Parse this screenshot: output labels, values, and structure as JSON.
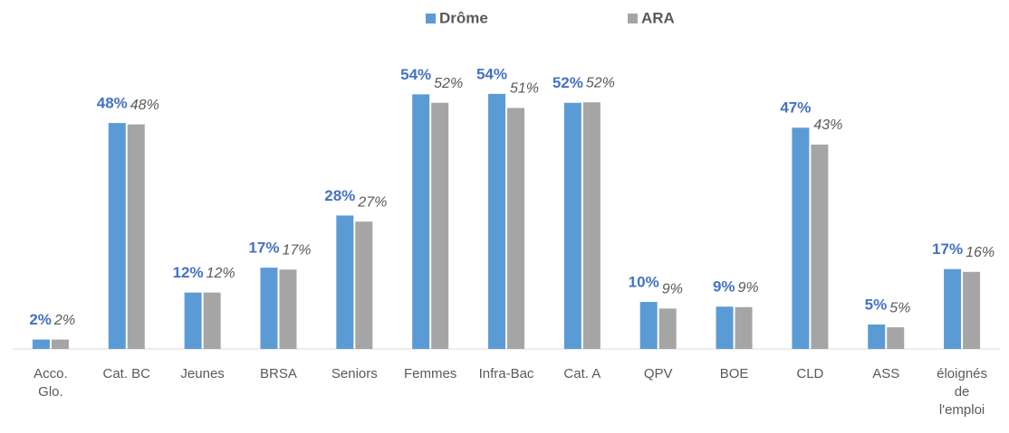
{
  "chart_data": {
    "type": "bar",
    "categories": [
      "Acco. Glo.",
      "Cat. BC",
      "Jeunes",
      "BRSA",
      "Seniors",
      "Femmes",
      "Infra-Bac",
      "Cat. A",
      "QPV",
      "BOE",
      "CLD",
      "ASS",
      "éloignés de l'emploi"
    ],
    "series": [
      {
        "name": "Drôme",
        "color": "#5b9bd5",
        "values": [
          2,
          48.1,
          12,
          17.3,
          28.4,
          54.2,
          54.3,
          52.4,
          10,
          9,
          47.1,
          5.2,
          17
        ],
        "value_labels": [
          "2%",
          "48%",
          "12%",
          "17%",
          "28%",
          "54%",
          "54%",
          "52%",
          "10%",
          "9%",
          "47%",
          "5%",
          "17%"
        ]
      },
      {
        "name": "ARA",
        "color": "#a5a5a5",
        "values": [
          2,
          47.8,
          12,
          16.9,
          27.1,
          52.4,
          51.3,
          52.5,
          8.6,
          8.9,
          43.5,
          4.6,
          16.4
        ],
        "value_labels": [
          "2%",
          "48%",
          "12%",
          "17%",
          "27%",
          "52%",
          "51%",
          "52%",
          "9%",
          "9%",
          "43%",
          "5%",
          "16%"
        ]
      }
    ],
    "ylim": [
      0,
      56
    ],
    "legend": "top"
  }
}
